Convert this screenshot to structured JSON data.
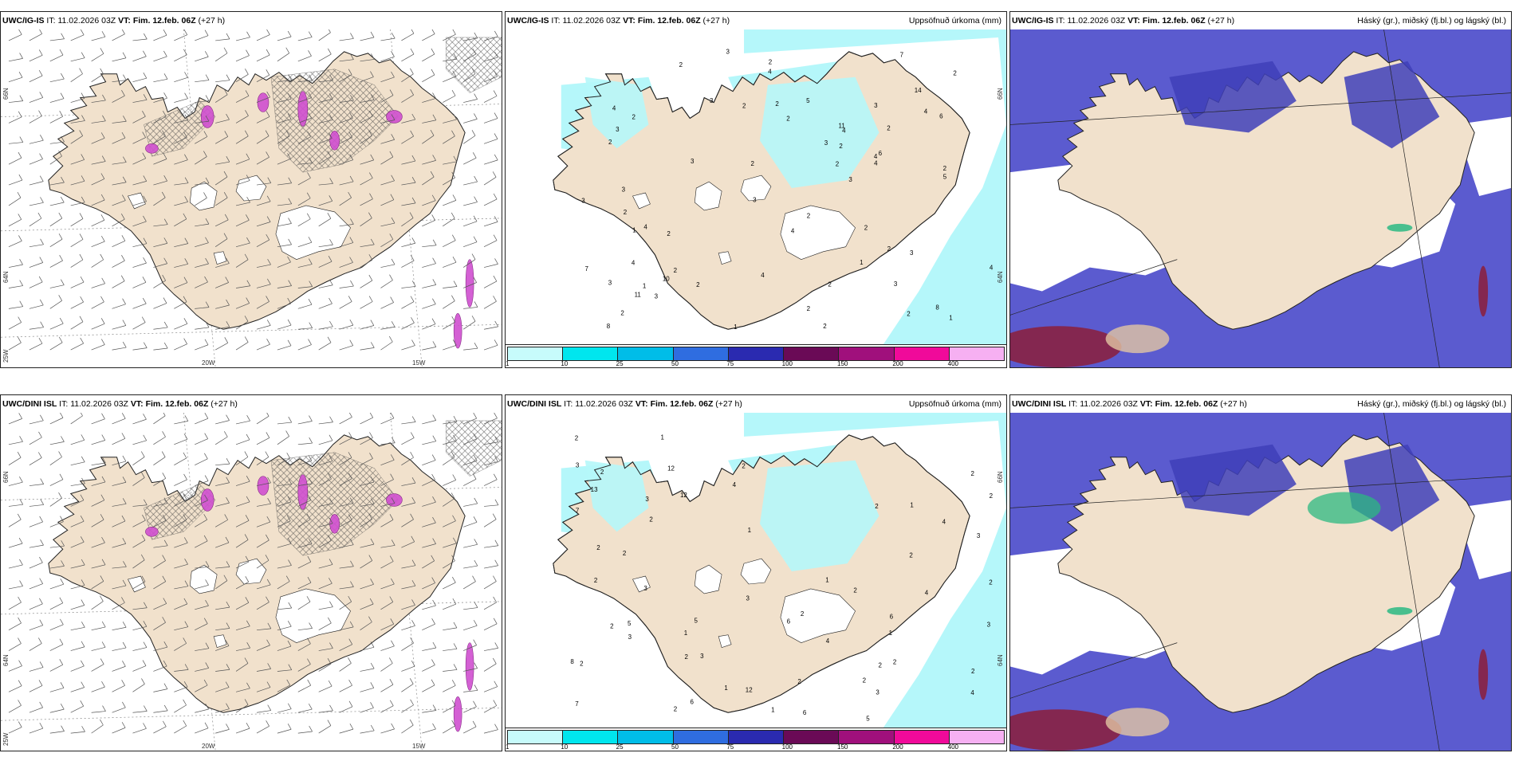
{
  "colors": {
    "land": "#f1e1cc",
    "lake": "#ffffff",
    "coast": "#222222",
    "light_cyan": "#b5f7fa",
    "deep_blue": "#5b5bcf",
    "mid_blue": "#3f3fb8",
    "grid": "#8a8a8a",
    "hatch": "#444444",
    "magenta": "#d04fd0",
    "green": "#2cb882",
    "dark_red": "#8c1f3a"
  },
  "panels": [
    {
      "id": "top-wind",
      "model": "UWC/IG-IS",
      "it_label": "IT:",
      "it_value": "11.02.2026 03Z",
      "vt_label": "VT:",
      "vt_value": "Fim. 12.feb. 06Z",
      "lead": "(+27 h)",
      "right_title": "",
      "type": "wind",
      "lat_labels": [
        "66N",
        "64N",
        "25W"
      ],
      "lon_labels": [
        "20W",
        "15W"
      ]
    },
    {
      "id": "top-precip",
      "model": "UWC/IG-IS",
      "it_label": "IT:",
      "it_value": "11.02.2026 03Z",
      "vt_label": "VT:",
      "vt_value": "Fim. 12.feb. 06Z",
      "lead": "(+27 h)",
      "right_title": "Uppsöfnuð úrkoma (mm)",
      "type": "precip",
      "lat_labels": [
        "66N",
        "64N"
      ],
      "lon_labels": [],
      "values": [
        "1",
        "2",
        "1",
        "3",
        "3",
        "3",
        "4",
        "4",
        "5",
        "2",
        "2",
        "2",
        "3",
        "2",
        "2",
        "6",
        "7",
        "10",
        "8",
        "3",
        "8",
        "6",
        "14",
        "4",
        "4",
        "2",
        "4",
        "3",
        "3",
        "3",
        "2",
        "2",
        "7",
        "3",
        "3",
        "11",
        "11",
        "2",
        "2",
        "2",
        "2",
        "2",
        "3",
        "4",
        "4",
        "5",
        "3",
        "3",
        "3",
        "2",
        "4",
        "4",
        "4",
        "4",
        "2",
        "1",
        "2",
        "2",
        "2",
        "2",
        "1",
        "2",
        "2",
        "2",
        "2",
        "1",
        "2"
      ]
    },
    {
      "id": "top-cloud",
      "model": "UWC/IG-IS",
      "it_label": "IT:",
      "it_value": "11.02.2026 03Z",
      "vt_label": "VT:",
      "vt_value": "Fim. 12.feb. 06Z",
      "lead": "(+27 h)",
      "right_title": "Háský (gr.), miðský (fj.bl.) og lágský (bl.)",
      "type": "cloud"
    },
    {
      "id": "bottom-wind",
      "model": "UWC/DINI ISL",
      "it_label": "IT:",
      "it_value": "11.02.2026 03Z",
      "vt_label": "VT:",
      "vt_value": "Fim. 12.feb. 06Z",
      "lead": "(+27 h)",
      "right_title": "",
      "type": "wind",
      "lat_labels": [
        "66N",
        "64N",
        "25W"
      ],
      "lon_labels": [
        "20W",
        "15W"
      ]
    },
    {
      "id": "bottom-precip",
      "model": "UWC/DINI ISL",
      "it_label": "IT:",
      "it_value": "11.02.2026 03Z",
      "vt_label": "VT:",
      "vt_value": "Fim. 12.feb. 06Z",
      "lead": "(+27 h)",
      "right_title": "Uppsöfnuð úrkoma (mm)",
      "type": "precip",
      "lat_labels": [
        "66N",
        "64N"
      ],
      "lon_labels": [],
      "values": [
        "1",
        "1",
        "2",
        "3",
        "7",
        "4",
        "2",
        "2",
        "1",
        "2",
        "2",
        "5",
        "6",
        "12",
        "13",
        "8",
        "2",
        "6",
        "7",
        "6",
        "3",
        "2",
        "1",
        "2",
        "2",
        "3",
        "2",
        "3",
        "3",
        "3",
        "2",
        "3",
        "2",
        "12",
        "12",
        "3",
        "4",
        "5",
        "3",
        "4",
        "4",
        "4",
        "2",
        "2",
        "2",
        "2",
        "2",
        "2",
        "2",
        "1",
        "1",
        "2",
        "2",
        "2",
        "1",
        "5",
        "6",
        "1",
        "2"
      ]
    },
    {
      "id": "bottom-cloud",
      "model": "UWC/DINI ISL",
      "it_label": "IT:",
      "it_value": "11.02.2026 03Z",
      "vt_label": "VT:",
      "vt_value": "Fim. 12.feb. 06Z",
      "lead": "(+27 h)",
      "right_title": "Háský (gr.), miðský (fj.bl.) og lágský (bl.)",
      "type": "cloud"
    }
  ],
  "colorbar": {
    "ticks": [
      "1",
      "10",
      "25",
      "50",
      "75",
      "100",
      "150",
      "200",
      "400"
    ],
    "colors": [
      "#c7fbfb",
      "#00e6ee",
      "#00bde8",
      "#2f6de0",
      "#2a2ab0",
      "#6a0a56",
      "#a0107c",
      "#f00a9a",
      "#f6b0f2"
    ]
  }
}
